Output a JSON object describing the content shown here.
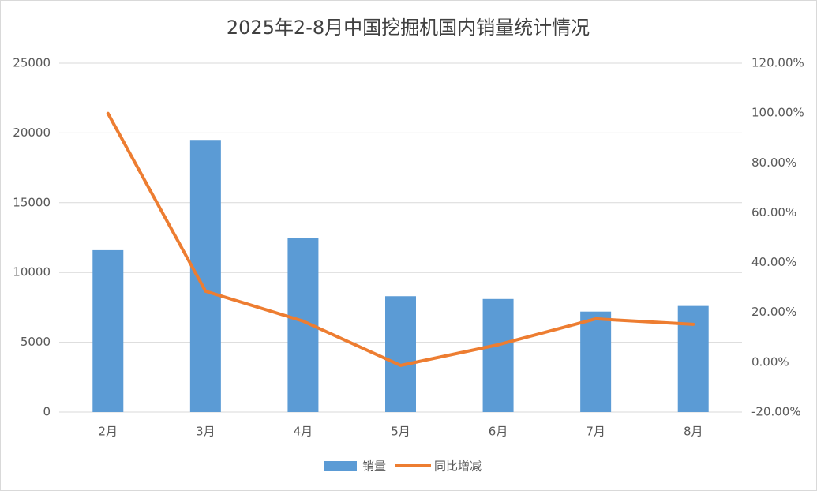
{
  "chart_data": {
    "type": "bar-line",
    "title": "2025年2-8月中国挖掘机国内销量统计情况",
    "categories": [
      "2月",
      "3月",
      "4月",
      "5月",
      "6月",
      "7月",
      "8月"
    ],
    "series": [
      {
        "name": "销量",
        "type": "bar",
        "color": "#5b9bd5",
        "values": [
          11600,
          19500,
          12500,
          8300,
          8100,
          7200,
          7600
        ]
      },
      {
        "name": "同比增减",
        "type": "line",
        "axis": "y2",
        "color": "#ed7d31",
        "values": [
          99.8,
          28.5,
          16.5,
          -1.3,
          7.0,
          17.4,
          15.2
        ]
      }
    ],
    "ylim": [
      0,
      25000
    ],
    "yticks": [
      0,
      5000,
      10000,
      15000,
      20000,
      25000
    ],
    "y2lim": [
      -20,
      120
    ],
    "y2ticks": [
      {
        "value": -20,
        "label": "-20.00%"
      },
      {
        "value": 0,
        "label": "0.00%"
      },
      {
        "value": 20,
        "label": "20.00%"
      },
      {
        "value": 40,
        "label": "40.00%"
      },
      {
        "value": 60,
        "label": "60.00%"
      },
      {
        "value": 80,
        "label": "80.00%"
      },
      {
        "value": 100,
        "label": "100.00%"
      },
      {
        "value": 120,
        "label": "120.00%"
      }
    ],
    "grid": true,
    "legend": "bottom"
  }
}
